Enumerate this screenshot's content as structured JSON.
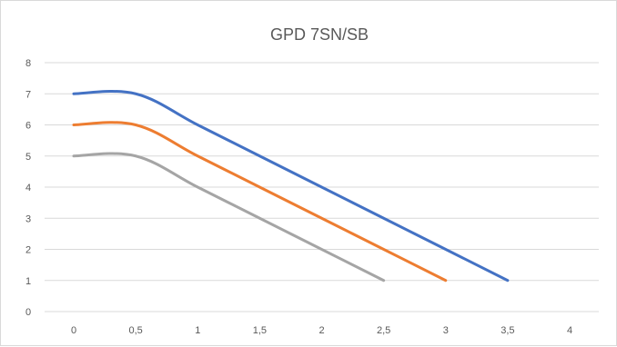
{
  "chart_data": {
    "type": "line",
    "title": "GPD 7SN/SB",
    "xlabel": "",
    "ylabel": "",
    "xlim": [
      0,
      4
    ],
    "ylim": [
      0,
      8
    ],
    "x_ticks": [
      "0",
      "0,5",
      "1",
      "1,5",
      "2",
      "2,5",
      "3",
      "3,5",
      "4"
    ],
    "y_ticks": [
      "0",
      "1",
      "2",
      "3",
      "4",
      "5",
      "6",
      "7",
      "8"
    ],
    "grid": "horizontal",
    "legend": "none",
    "smooth": true,
    "series": [
      {
        "color": "#4472C4",
        "x": [
          0,
          0.5,
          1,
          1.5,
          2,
          2.5,
          3,
          3.5
        ],
        "y": [
          7,
          7,
          6,
          5,
          4,
          3,
          2,
          1
        ]
      },
      {
        "color": "#ED7D31",
        "x": [
          0,
          0.5,
          1,
          1.5,
          2,
          2.5,
          3
        ],
        "y": [
          6,
          6,
          5,
          4,
          3,
          2,
          1
        ]
      },
      {
        "color": "#A5A5A5",
        "x": [
          0,
          0.5,
          1,
          1.5,
          2,
          2.5
        ],
        "y": [
          5,
          5,
          4,
          3,
          2,
          1
        ]
      }
    ]
  }
}
